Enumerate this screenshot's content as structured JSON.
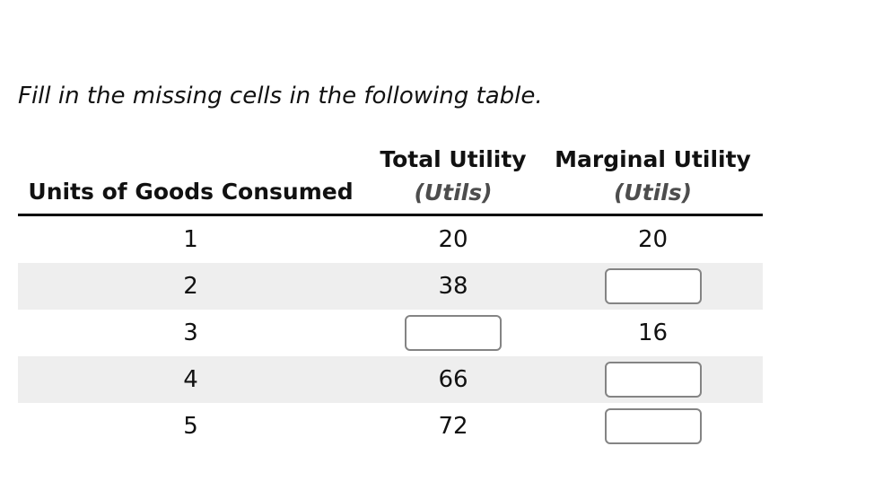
{
  "instruction": "Fill in the missing cells in the following table.",
  "table": {
    "header": {
      "units_title": "Units of Goods Consumed",
      "total_title": "Total Utility",
      "total_subtitle": "(Utils)",
      "marginal_title": "Marginal Utility",
      "marginal_subtitle": "(Utils)"
    },
    "rows": [
      {
        "units": "1",
        "total": "20",
        "marginal": "20"
      },
      {
        "units": "2",
        "total": "38",
        "marginal": ""
      },
      {
        "units": "3",
        "total": "",
        "marginal": "16"
      },
      {
        "units": "4",
        "total": "66",
        "marginal": ""
      },
      {
        "units": "5",
        "total": "72",
        "marginal": ""
      }
    ],
    "empty_input_cells": [
      "row2.marginal",
      "row3.total",
      "row4.marginal",
      "row5.marginal"
    ]
  },
  "colors": {
    "stripe": "#eeeeee",
    "rule": "#000000",
    "subheader": "#4d4d4d",
    "input_border": "#848484"
  }
}
